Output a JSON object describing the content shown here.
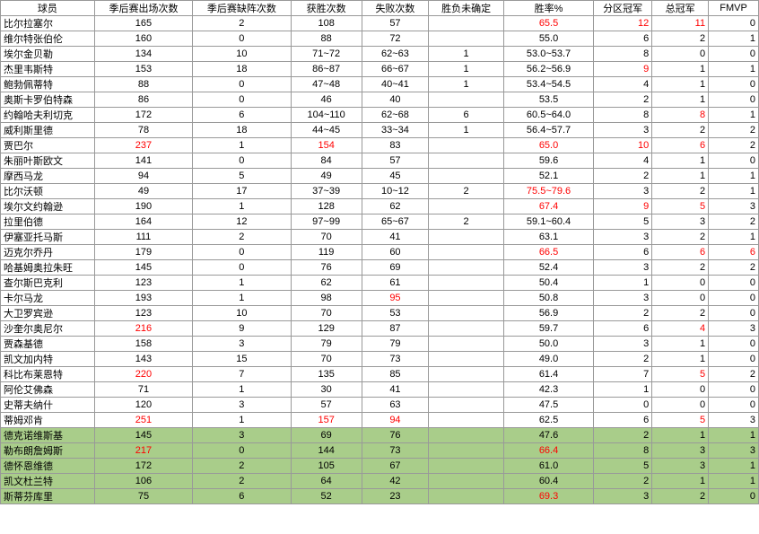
{
  "colors": {
    "red": "#ff0000",
    "highlight": "#a9cd8a",
    "border": "#999999",
    "text": "#000000",
    "background": "#ffffff"
  },
  "columns": [
    "球员",
    "季后赛出场次数",
    "季后赛缺阵次数",
    "获胜次数",
    "失败次数",
    "胜负未确定",
    "胜率%",
    "分区冠军",
    "总冠军",
    "FMVP"
  ],
  "rows": [
    {
      "name": "比尔拉塞尔",
      "app": "165",
      "miss": "2",
      "win": "108",
      "loss": "57",
      "und": "",
      "rate": "65.5",
      "div": "12",
      "champ": "11",
      "fmvp": "0",
      "red": [
        "rate",
        "div",
        "champ"
      ]
    },
    {
      "name": "维尔特张伯伦",
      "app": "160",
      "miss": "0",
      "win": "88",
      "loss": "72",
      "und": "",
      "rate": "55.0",
      "div": "6",
      "champ": "2",
      "fmvp": "1",
      "red": []
    },
    {
      "name": "埃尔金贝勒",
      "app": "134",
      "miss": "10",
      "win": "71~72",
      "loss": "62~63",
      "und": "1",
      "rate": "53.0~53.7",
      "div": "8",
      "champ": "0",
      "fmvp": "0",
      "red": []
    },
    {
      "name": "杰里韦斯特",
      "app": "153",
      "miss": "18",
      "win": "86~87",
      "loss": "66~67",
      "und": "1",
      "rate": "56.2~56.9",
      "div": "9",
      "champ": "1",
      "fmvp": "1",
      "red": [
        "div"
      ]
    },
    {
      "name": "鲍勃佩蒂特",
      "app": "88",
      "miss": "0",
      "win": "47~48",
      "loss": "40~41",
      "und": "1",
      "rate": "53.4~54.5",
      "div": "4",
      "champ": "1",
      "fmvp": "0",
      "red": []
    },
    {
      "name": "奥斯卡罗伯特森",
      "app": "86",
      "miss": "0",
      "win": "46",
      "loss": "40",
      "und": "",
      "rate": "53.5",
      "div": "2",
      "champ": "1",
      "fmvp": "0",
      "red": []
    },
    {
      "name": "约翰哈夫利切克",
      "app": "172",
      "miss": "6",
      "win": "104~110",
      "loss": "62~68",
      "und": "6",
      "rate": "60.5~64.0",
      "div": "8",
      "champ": "8",
      "fmvp": "1",
      "red": [
        "champ"
      ]
    },
    {
      "name": "威利斯里德",
      "app": "78",
      "miss": "18",
      "win": "44~45",
      "loss": "33~34",
      "und": "1",
      "rate": "56.4~57.7",
      "div": "3",
      "champ": "2",
      "fmvp": "2",
      "red": []
    },
    {
      "name": "贾巴尔",
      "app": "237",
      "miss": "1",
      "win": "154",
      "loss": "83",
      "und": "",
      "rate": "65.0",
      "div": "10",
      "champ": "6",
      "fmvp": "2",
      "red": [
        "app",
        "win",
        "rate",
        "div",
        "champ"
      ]
    },
    {
      "name": "朱丽叶斯欧文",
      "app": "141",
      "miss": "0",
      "win": "84",
      "loss": "57",
      "und": "",
      "rate": "59.6",
      "div": "4",
      "champ": "1",
      "fmvp": "0",
      "red": []
    },
    {
      "name": "摩西马龙",
      "app": "94",
      "miss": "5",
      "win": "49",
      "loss": "45",
      "und": "",
      "rate": "52.1",
      "div": "2",
      "champ": "1",
      "fmvp": "1",
      "red": []
    },
    {
      "name": "比尔沃顿",
      "app": "49",
      "miss": "17",
      "win": "37~39",
      "loss": "10~12",
      "und": "2",
      "rate": "75.5~79.6",
      "div": "3",
      "champ": "2",
      "fmvp": "1",
      "red": [
        "rate"
      ]
    },
    {
      "name": "埃尔文约翰逊",
      "app": "190",
      "miss": "1",
      "win": "128",
      "loss": "62",
      "und": "",
      "rate": "67.4",
      "div": "9",
      "champ": "5",
      "fmvp": "3",
      "red": [
        "rate",
        "div",
        "champ"
      ]
    },
    {
      "name": "拉里伯德",
      "app": "164",
      "miss": "12",
      "win": "97~99",
      "loss": "65~67",
      "und": "2",
      "rate": "59.1~60.4",
      "div": "5",
      "champ": "3",
      "fmvp": "2",
      "red": []
    },
    {
      "name": "伊塞亚托马斯",
      "app": "111",
      "miss": "2",
      "win": "70",
      "loss": "41",
      "und": "",
      "rate": "63.1",
      "div": "3",
      "champ": "2",
      "fmvp": "1",
      "red": []
    },
    {
      "name": "迈克尔乔丹",
      "app": "179",
      "miss": "0",
      "win": "119",
      "loss": "60",
      "und": "",
      "rate": "66.5",
      "div": "6",
      "champ": "6",
      "fmvp": "6",
      "red": [
        "rate",
        "champ",
        "fmvp"
      ]
    },
    {
      "name": "哈基姆奥拉朱旺",
      "app": "145",
      "miss": "0",
      "win": "76",
      "loss": "69",
      "und": "",
      "rate": "52.4",
      "div": "3",
      "champ": "2",
      "fmvp": "2",
      "red": []
    },
    {
      "name": "查尔斯巴克利",
      "app": "123",
      "miss": "1",
      "win": "62",
      "loss": "61",
      "und": "",
      "rate": "50.4",
      "div": "1",
      "champ": "0",
      "fmvp": "0",
      "red": []
    },
    {
      "name": "卡尔马龙",
      "app": "193",
      "miss": "1",
      "win": "98",
      "loss": "95",
      "und": "",
      "rate": "50.8",
      "div": "3",
      "champ": "0",
      "fmvp": "0",
      "red": [
        "loss"
      ]
    },
    {
      "name": "大卫罗宾逊",
      "app": "123",
      "miss": "10",
      "win": "70",
      "loss": "53",
      "und": "",
      "rate": "56.9",
      "div": "2",
      "champ": "2",
      "fmvp": "0",
      "red": []
    },
    {
      "name": "沙奎尔奥尼尔",
      "app": "216",
      "miss": "9",
      "win": "129",
      "loss": "87",
      "und": "",
      "rate": "59.7",
      "div": "6",
      "champ": "4",
      "fmvp": "3",
      "red": [
        "app",
        "champ"
      ]
    },
    {
      "name": "贾森基德",
      "app": "158",
      "miss": "3",
      "win": "79",
      "loss": "79",
      "und": "",
      "rate": "50.0",
      "div": "3",
      "champ": "1",
      "fmvp": "0",
      "red": []
    },
    {
      "name": "凯文加内特",
      "app": "143",
      "miss": "15",
      "win": "70",
      "loss": "73",
      "und": "",
      "rate": "49.0",
      "div": "2",
      "champ": "1",
      "fmvp": "0",
      "red": []
    },
    {
      "name": "科比布莱恩特",
      "app": "220",
      "miss": "7",
      "win": "135",
      "loss": "85",
      "und": "",
      "rate": "61.4",
      "div": "7",
      "champ": "5",
      "fmvp": "2",
      "red": [
        "app",
        "champ"
      ]
    },
    {
      "name": "阿伦艾佛森",
      "app": "71",
      "miss": "1",
      "win": "30",
      "loss": "41",
      "und": "",
      "rate": "42.3",
      "div": "1",
      "champ": "0",
      "fmvp": "0",
      "red": []
    },
    {
      "name": "史蒂夫纳什",
      "app": "120",
      "miss": "3",
      "win": "57",
      "loss": "63",
      "und": "",
      "rate": "47.5",
      "div": "0",
      "champ": "0",
      "fmvp": "0",
      "red": []
    },
    {
      "name": "蒂姆邓肯",
      "app": "251",
      "miss": "1",
      "win": "157",
      "loss": "94",
      "und": "",
      "rate": "62.5",
      "div": "6",
      "champ": "5",
      "fmvp": "3",
      "red": [
        "app",
        "win",
        "loss",
        "champ"
      ]
    },
    {
      "name": "德克诺维斯基",
      "app": "145",
      "miss": "3",
      "win": "69",
      "loss": "76",
      "und": "",
      "rate": "47.6",
      "div": "2",
      "champ": "1",
      "fmvp": "1",
      "red": [],
      "hl": true
    },
    {
      "name": "勒布朗詹姆斯",
      "app": "217",
      "miss": "0",
      "win": "144",
      "loss": "73",
      "und": "",
      "rate": "66.4",
      "div": "8",
      "champ": "3",
      "fmvp": "3",
      "red": [
        "app",
        "rate"
      ],
      "hl": true
    },
    {
      "name": "德怀恩维德",
      "app": "172",
      "miss": "2",
      "win": "105",
      "loss": "67",
      "und": "",
      "rate": "61.0",
      "div": "5",
      "champ": "3",
      "fmvp": "1",
      "red": [],
      "hl": true
    },
    {
      "name": "凯文杜兰特",
      "app": "106",
      "miss": "2",
      "win": "64",
      "loss": "42",
      "und": "",
      "rate": "60.4",
      "div": "2",
      "champ": "1",
      "fmvp": "1",
      "red": [],
      "hl": true
    },
    {
      "name": "斯蒂芬库里",
      "app": "75",
      "miss": "6",
      "win": "52",
      "loss": "23",
      "und": "",
      "rate": "69.3",
      "div": "3",
      "champ": "2",
      "fmvp": "0",
      "red": [
        "rate"
      ],
      "hl": true
    }
  ],
  "keyOrder": [
    "name",
    "app",
    "miss",
    "win",
    "loss",
    "und",
    "rate",
    "div",
    "champ",
    "fmvp"
  ]
}
